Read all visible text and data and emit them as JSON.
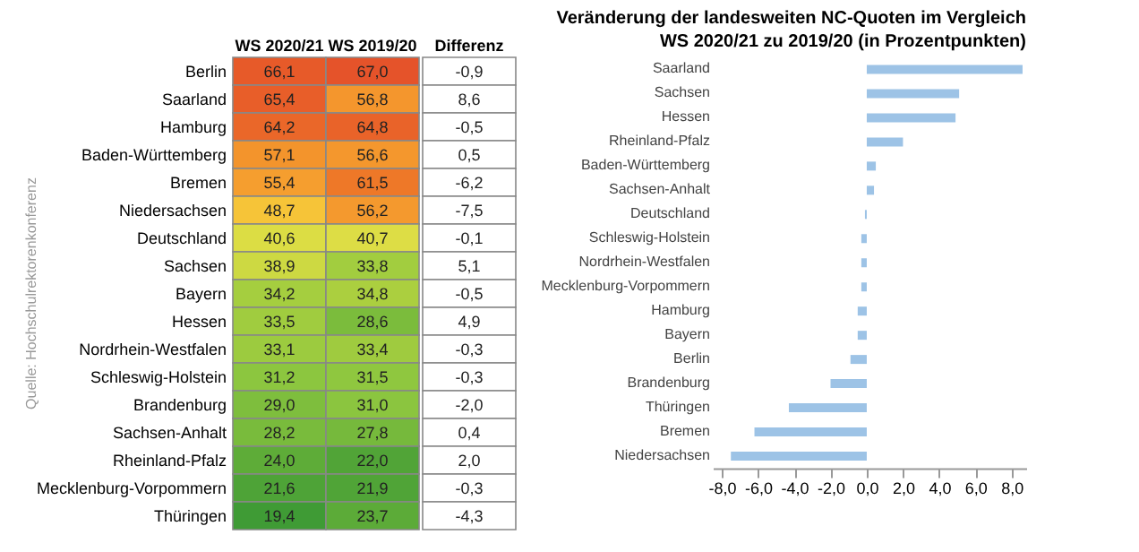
{
  "chart_data": [
    {
      "type": "heatmap",
      "categories": [
        "WS 2020/21",
        "WS 2019/20"
      ],
      "y_categories": [
        "Berlin",
        "Saarland",
        "Hamburg",
        "Baden-Württemberg",
        "Bremen",
        "Niedersachsen",
        "Deutschland",
        "Sachsen",
        "Bayern",
        "Hessen",
        "Nordrhein-Westfalen",
        "Schleswig-Holstein",
        "Brandenburg",
        "Sachsen-Anhalt",
        "Rheinland-Pfalz",
        "Mecklenburg-Vorpommern",
        "Thüringen"
      ],
      "cells": [
        [
          66.1,
          67.0
        ],
        [
          65.4,
          56.8
        ],
        [
          64.2,
          64.8
        ],
        [
          57.1,
          56.6
        ],
        [
          55.4,
          61.5
        ],
        [
          48.7,
          56.2
        ],
        [
          40.6,
          40.7
        ],
        [
          38.9,
          33.8
        ],
        [
          34.2,
          34.8
        ],
        [
          33.5,
          28.6
        ],
        [
          33.1,
          33.4
        ],
        [
          31.2,
          31.5
        ],
        [
          29.0,
          31.0
        ],
        [
          28.2,
          27.8
        ],
        [
          24.0,
          22.0
        ],
        [
          21.6,
          21.9
        ],
        [
          19.4,
          23.7
        ]
      ],
      "cell_labels": [
        [
          "66,1",
          "67,0"
        ],
        [
          "65,4",
          "56,8"
        ],
        [
          "64,2",
          "64,8"
        ],
        [
          "57,1",
          "56,6"
        ],
        [
          "55,4",
          "61,5"
        ],
        [
          "48,7",
          "56,2"
        ],
        [
          "40,6",
          "40,7"
        ],
        [
          "38,9",
          "33,8"
        ],
        [
          "34,2",
          "34,8"
        ],
        [
          "33,5",
          "28,6"
        ],
        [
          "33,1",
          "33,4"
        ],
        [
          "31,2",
          "31,5"
        ],
        [
          "29,0",
          "31,0"
        ],
        [
          "28,2",
          "27,8"
        ],
        [
          "24,0",
          "22,0"
        ],
        [
          "21,6",
          "21,9"
        ],
        [
          "19,4",
          "23,7"
        ]
      ],
      "annotations": [
        "Quelle: Hochschulrektorenkonferenz"
      ]
    },
    {
      "type": "other",
      "xlabel": "Differenz",
      "annotations": [
        "-0,9",
        "8,6",
        "-0,5",
        "0,5",
        "-6,2",
        "-7,5",
        "-0,1",
        "5,1",
        "-0,5",
        "4,9",
        "-0,3",
        "-0,3",
        "-2,0",
        "0,4",
        "2,0",
        "-0,3",
        "-4,3"
      ]
    },
    {
      "type": "bar",
      "orientation": "horizontal",
      "title": "Veränderung der landesweiten NC-Quoten im Vergleich",
      "subtitle": "WS 2020/21 zu 2019/20 (in Prozentpunkten)",
      "categories": [
        "Saarland",
        "Sachsen",
        "Hessen",
        "Rheinland-Pfalz",
        "Baden-Württemberg",
        "Sachsen-Anhalt",
        "Deutschland",
        "Schleswig-Holstein",
        "Nordrhein-Westfalen",
        "Mecklenburg-Vorpommern",
        "Hamburg",
        "Bayern",
        "Berlin",
        "Brandenburg",
        "Thüringen",
        "Bremen",
        "Niedersachsen"
      ],
      "series": [
        {
          "color": "#9dc3e6",
          "values": [
            8.6,
            5.1,
            4.9,
            2.0,
            0.5,
            0.4,
            -0.1,
            -0.3,
            -0.3,
            -0.3,
            -0.5,
            -0.5,
            -0.9,
            -2.0,
            -4.3,
            -6.2,
            -7.5
          ]
        }
      ],
      "xlim": [
        -8.5,
        8.8
      ],
      "xticks": [
        {
          "value": -8,
          "label": "-8,0"
        },
        {
          "value": -6,
          "label": "-6,0"
        },
        {
          "value": -4,
          "label": "-4,0"
        },
        {
          "value": -2,
          "label": "-2,0"
        },
        {
          "value": 0,
          "label": "0,0"
        },
        {
          "value": 2,
          "label": "2,0"
        },
        {
          "value": 4,
          "label": "4,0"
        },
        {
          "value": 6,
          "label": "6,0"
        },
        {
          "value": 8,
          "label": "8,0"
        }
      ],
      "grid": false
    }
  ]
}
